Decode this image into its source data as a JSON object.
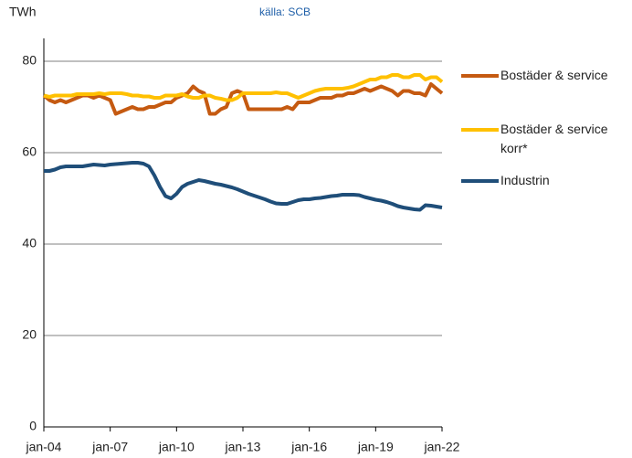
{
  "chart_data": {
    "type": "line",
    "subtitle": "källa: SCB",
    "y_label": "TWh",
    "categories": [
      "jan-04",
      null,
      null,
      null,
      null,
      null,
      null,
      null,
      null,
      null,
      null,
      null,
      "jan-07",
      null,
      null,
      null,
      null,
      null,
      null,
      null,
      null,
      null,
      null,
      null,
      "jan-10",
      null,
      null,
      null,
      null,
      null,
      null,
      null,
      null,
      null,
      null,
      null,
      "jan-13",
      null,
      null,
      null,
      null,
      null,
      null,
      null,
      null,
      null,
      null,
      null,
      "jan-16",
      null,
      null,
      null,
      null,
      null,
      null,
      null,
      null,
      null,
      null,
      null,
      "jan-19",
      null,
      null,
      null,
      null,
      null,
      null,
      null,
      null,
      null,
      null,
      null,
      "jan-22"
    ],
    "series": [
      {
        "name": "Bostäder & service",
        "color": "#c55a11",
        "values": [
          72.5,
          71.5,
          71,
          71.5,
          71,
          71.5,
          72,
          72.5,
          72.5,
          72,
          72.5,
          72,
          71.5,
          68.5,
          69,
          69.5,
          70,
          69.5,
          69.5,
          70,
          70,
          70.5,
          71,
          71,
          72,
          72.5,
          73,
          74.5,
          73.5,
          73,
          68.5,
          68.5,
          69.5,
          70,
          73,
          73.5,
          73,
          69.5,
          69.5,
          69.5,
          69.5,
          69.5,
          69.5,
          69.5,
          70,
          69.5,
          71,
          71,
          71,
          71.5,
          72,
          72,
          72,
          72.5,
          72.5,
          73,
          73,
          73.5,
          74,
          73.5,
          74,
          74.5,
          74,
          73.5,
          72.5,
          73.5,
          73.5,
          73,
          73,
          72.5,
          75,
          74,
          73
        ]
      },
      {
        "name": "Bostäder & service korr*",
        "color": "#ffc000",
        "values": [
          72.5,
          72.2,
          72.5,
          72.5,
          72.5,
          72.5,
          72.8,
          72.8,
          72.8,
          72.8,
          73,
          72.8,
          73,
          73,
          73,
          72.8,
          72.5,
          72.5,
          72.3,
          72.3,
          72,
          72,
          72.5,
          72.5,
          72.5,
          72.8,
          72.3,
          72,
          72,
          72.5,
          72.5,
          72,
          71.8,
          71.5,
          71.5,
          72,
          73,
          73,
          73,
          73,
          73,
          73,
          73.2,
          73,
          73,
          72.5,
          72,
          72.5,
          73,
          73.5,
          73.8,
          74,
          74,
          74,
          74,
          74.2,
          74.5,
          75,
          75.5,
          76,
          76,
          76.5,
          76.5,
          77,
          77,
          76.5,
          76.5,
          77,
          77,
          76,
          76.5,
          76.5,
          75.5
        ]
      },
      {
        "name": "Industrin",
        "color": "#1f4e79",
        "values": [
          56,
          56,
          56.3,
          56.8,
          57,
          57,
          57,
          57,
          57.2,
          57.4,
          57.3,
          57.2,
          57.4,
          57.5,
          57.6,
          57.7,
          57.8,
          57.8,
          57.6,
          57,
          55,
          52.5,
          50.5,
          50,
          51,
          52.5,
          53.2,
          53.6,
          54,
          53.8,
          53.5,
          53.2,
          53,
          52.7,
          52.4,
          52,
          51.5,
          51,
          50.6,
          50.2,
          49.8,
          49.3,
          48.9,
          48.8,
          48.8,
          49.2,
          49.6,
          49.8,
          49.8,
          50,
          50.1,
          50.3,
          50.5,
          50.6,
          50.8,
          50.8,
          50.8,
          50.7,
          50.3,
          50,
          49.7,
          49.5,
          49.2,
          48.8,
          48.3,
          48,
          47.8,
          47.6,
          47.5,
          48.5,
          48.4,
          48.2,
          48
        ]
      }
    ],
    "ylim": [
      0,
      85
    ],
    "yticks": [
      0,
      20,
      40,
      60,
      80
    ],
    "grid": true,
    "legend": "right"
  }
}
